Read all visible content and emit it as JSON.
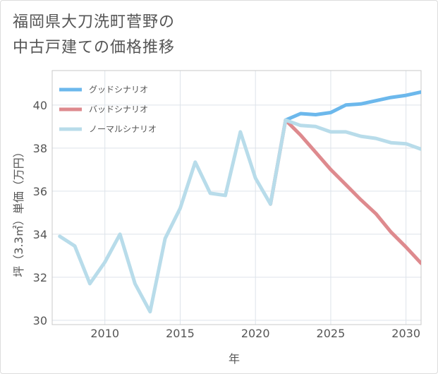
{
  "title_line1": "福岡県大刀洗町菅野の",
  "title_line2": "中古戸建ての価格推移",
  "chart_data": {
    "type": "line",
    "xlabel": "年",
    "ylabel": "坪（3.3㎡）単価（万円）",
    "xlim": [
      2006.5,
      2031
    ],
    "ylim": [
      29.8,
      41.6
    ],
    "x_ticks": [
      2010,
      2015,
      2020,
      2025,
      2030
    ],
    "y_ticks": [
      30,
      32,
      34,
      36,
      38,
      40
    ],
    "grid": true,
    "legend_position": "top-left",
    "series": [
      {
        "name": "グッドシナリオ",
        "color": "#6cb8ec",
        "x": [
          2022,
          2023,
          2024,
          2025,
          2026,
          2027,
          2028,
          2029,
          2030,
          2031
        ],
        "values": [
          39.3,
          39.6,
          39.55,
          39.65,
          40.0,
          40.05,
          40.2,
          40.35,
          40.45,
          40.6
        ]
      },
      {
        "name": "バッドシナリオ",
        "color": "#de8a8e",
        "x": [
          2021,
          2022,
          2023,
          2024,
          2025,
          2026,
          2027,
          2028,
          2029,
          2030,
          2031
        ],
        "values": [
          35.4,
          39.3,
          38.6,
          37.8,
          37.0,
          36.3,
          35.6,
          34.95,
          34.1,
          33.4,
          32.65
        ]
      },
      {
        "name": "ノーマルシナリオ",
        "color": "#b8dcea",
        "x": [
          2007,
          2008,
          2009,
          2010,
          2011,
          2012,
          2013,
          2014,
          2015,
          2016,
          2017,
          2018,
          2019,
          2020,
          2021,
          2022,
          2023,
          2024,
          2025,
          2026,
          2027,
          2028,
          2029,
          2030,
          2031
        ],
        "values": [
          33.9,
          33.45,
          31.7,
          32.7,
          34.0,
          31.7,
          30.4,
          33.8,
          35.2,
          37.35,
          35.9,
          35.8,
          38.75,
          36.6,
          35.4,
          39.3,
          39.05,
          39.0,
          38.75,
          38.75,
          38.55,
          38.45,
          38.25,
          38.2,
          37.95
        ]
      }
    ]
  }
}
